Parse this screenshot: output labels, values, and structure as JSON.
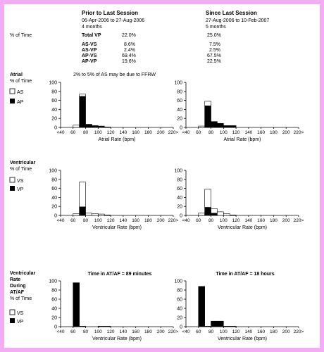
{
  "header": {
    "left": {
      "title": "Prior to Last Session",
      "range": "06-Apr-2006 to 27-Aug-2006",
      "duration": "4 months"
    },
    "right": {
      "title": "Since Last Session",
      "range": "27-Aug-2006 to 10-Feb-2007",
      "duration": "5 months"
    },
    "pct_label": "% of Time"
  },
  "stats": [
    {
      "label": "Total VP",
      "left": "22.0%",
      "right": "25.0%"
    },
    {
      "label": "AS-VS",
      "left": "8.6%",
      "right": "7.5%"
    },
    {
      "label": "AS-VP",
      "left": "2.4%",
      "right": "2.5%"
    },
    {
      "label": "AP-VS",
      "left": "69.4%",
      "right": "67.5%"
    },
    {
      "label": "AP-VP",
      "left": "19.6%",
      "right": "22.5%"
    }
  ],
  "sections": {
    "atrial": {
      "title": "Atrial",
      "axis_title": "% of Time",
      "legend": [
        "AS",
        "AP"
      ],
      "note": "2% to 5% of AS may be due to FFRW"
    },
    "ventricular": {
      "title": "Ventricular",
      "axis_title": "% of Time",
      "legend": [
        "VS",
        "VP"
      ]
    },
    "atvent": {
      "title_lines": [
        "Ventricular",
        "Rate",
        "During",
        "AT/AF"
      ],
      "axis_title": "% of Time",
      "legend": [
        "VS",
        "VP"
      ]
    }
  },
  "axis": {
    "x_ticks": [
      "<40",
      "60",
      "80",
      "100",
      "120",
      "140",
      "160",
      "180",
      "200",
      "220>"
    ],
    "y_ticks": [
      "0",
      "20",
      "40",
      "60",
      "80",
      "100"
    ]
  },
  "colors": {
    "frame": "#f3aef3",
    "filled": "#000000",
    "open": "#ffffff"
  },
  "chart_data": [
    {
      "id": "atrial-prior",
      "type": "bar",
      "stacked": true,
      "xlabel": "Atrial Rate (bpm)",
      "ylim": [
        0,
        100
      ],
      "bins": [
        "60-70",
        "70-80",
        "80-90",
        "90-100",
        "100-110",
        "110-120"
      ],
      "series": [
        {
          "name": "AP",
          "values": [
            0,
            69,
            7,
            4,
            3,
            1
          ]
        },
        {
          "name": "AS",
          "values": [
            5,
            5,
            0,
            0,
            0,
            0
          ]
        }
      ]
    },
    {
      "id": "atrial-since",
      "type": "bar",
      "stacked": true,
      "xlabel": "Atrial Rate (bpm)",
      "ylim": [
        0,
        100
      ],
      "bins": [
        "60-70",
        "70-80",
        "80-90",
        "90-100",
        "100-110",
        "110-120"
      ],
      "series": [
        {
          "name": "AP",
          "values": [
            0,
            48,
            13,
            9,
            4,
            4
          ]
        },
        {
          "name": "AS",
          "values": [
            3,
            10,
            0,
            0,
            0,
            0
          ]
        }
      ]
    },
    {
      "id": "vent-prior",
      "type": "bar",
      "stacked": true,
      "xlabel": "Ventricular Rate (bpm)",
      "ylim": [
        0,
        100
      ],
      "bins": [
        "60-70",
        "70-80",
        "80-90",
        "90-100",
        "100-110",
        "110-120"
      ],
      "series": [
        {
          "name": "VP",
          "values": [
            0,
            19,
            0,
            0,
            0,
            0
          ]
        },
        {
          "name": "VS",
          "values": [
            4,
            55,
            5,
            4,
            3,
            1
          ]
        }
      ]
    },
    {
      "id": "vent-since",
      "type": "bar",
      "stacked": true,
      "xlabel": "Ventricular Rate (bpm)",
      "ylim": [
        0,
        100
      ],
      "bins": [
        "60-70",
        "70-80",
        "80-90",
        "90-100",
        "100-110",
        "110-120"
      ],
      "series": [
        {
          "name": "VP",
          "values": [
            0,
            18,
            5,
            0,
            0,
            0
          ]
        },
        {
          "name": "VS",
          "values": [
            5,
            40,
            10,
            8,
            4,
            1
          ]
        }
      ]
    },
    {
      "id": "atvent-prior",
      "type": "bar",
      "stacked": true,
      "title": "Time in AT/AF = 89 minutes",
      "xlabel": "Ventricular Rate (bpm)",
      "ylim": [
        0,
        100
      ],
      "bins": [
        "60-70",
        "70-80",
        "80-90",
        "90-100",
        "100-110",
        "110-120"
      ],
      "series": [
        {
          "name": "VP",
          "values": [
            96,
            1,
            0,
            0,
            1,
            1
          ]
        },
        {
          "name": "VS",
          "values": [
            0,
            0,
            0,
            0,
            0,
            0
          ]
        }
      ]
    },
    {
      "id": "atvent-since",
      "type": "bar",
      "stacked": true,
      "title": "Time in AT/AF = 18 hours",
      "xlabel": "Ventricular Rate (bpm)",
      "ylim": [
        0,
        100
      ],
      "bins": [
        "60-70",
        "70-80",
        "80-90",
        "90-100",
        "100-110",
        "110-120"
      ],
      "series": [
        {
          "name": "VP",
          "values": [
            88,
            1,
            12,
            12,
            1,
            1
          ]
        },
        {
          "name": "VS",
          "values": [
            0,
            0,
            0,
            0,
            0,
            0
          ]
        }
      ]
    }
  ]
}
